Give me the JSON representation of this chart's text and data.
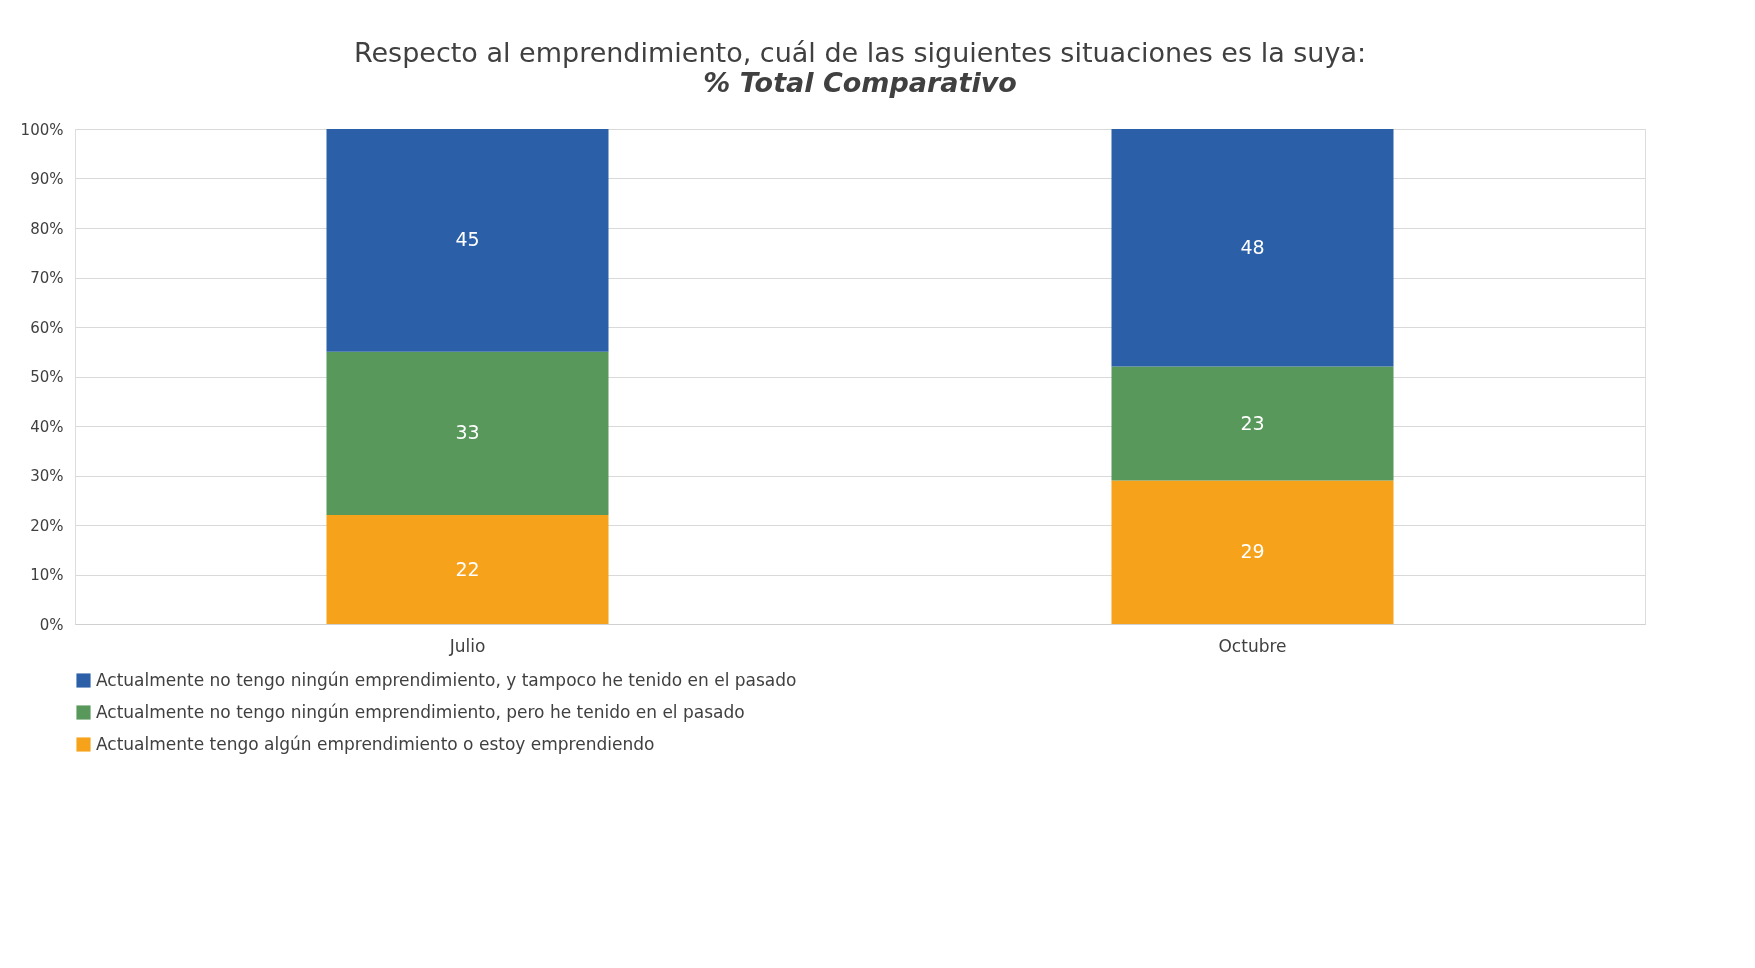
{
  "chart_data": {
    "type": "bar",
    "title": "Respecto al emprendimiento, cuál de las siguientes situaciones es la suya:",
    "subtitle": "% Total Comparativo",
    "categories": [
      "Julio",
      "Octubre"
    ],
    "stacked": true,
    "data_labels": true,
    "grid": "y",
    "legend": "bottom",
    "ylim": [
      0,
      100
    ],
    "yticks": [
      {
        "value": 0,
        "label": "0%"
      },
      {
        "value": 10,
        "label": "10%"
      },
      {
        "value": 20,
        "label": "20%"
      },
      {
        "value": 30,
        "label": "30%"
      },
      {
        "value": 40,
        "label": "40%"
      },
      {
        "value": 50,
        "label": "50%"
      },
      {
        "value": 60,
        "label": "60%"
      },
      {
        "value": 70,
        "label": "70%"
      },
      {
        "value": 80,
        "label": "80%"
      },
      {
        "value": 90,
        "label": "90%"
      },
      {
        "value": 100,
        "label": "100%"
      }
    ],
    "series": [
      {
        "name": "Actualmente tengo algún emprendimiento o estoy emprendiendo",
        "color": "#f7a21b",
        "values": [
          22,
          29
        ]
      },
      {
        "name": "Actualmente no tengo ningún emprendimiento, pero he tenido en el pasado",
        "color": "#58985b",
        "values": [
          33,
          23
        ]
      },
      {
        "name": "Actualmente no tengo ningún emprendimiento, y tampoco he tenido en el pasado",
        "color": "#2b60a9",
        "values": [
          45,
          48
        ]
      }
    ]
  }
}
